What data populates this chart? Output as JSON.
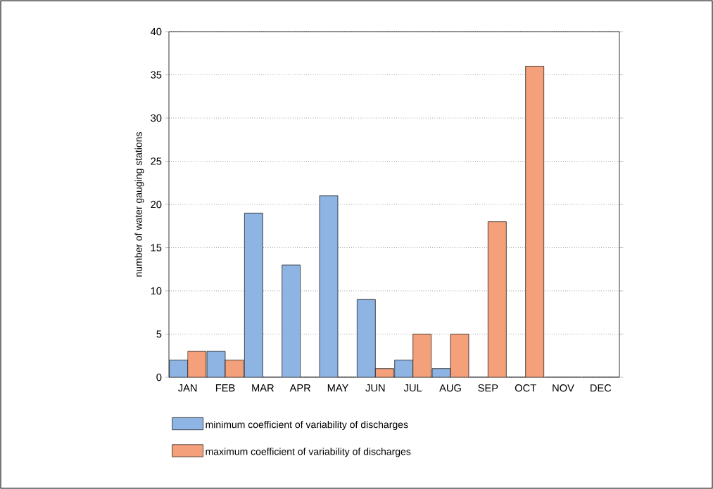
{
  "chart_data": {
    "type": "bar",
    "ylabel": "number of water gauging stations",
    "categories": [
      "JAN",
      "FEB",
      "MAR",
      "APR",
      "MAY",
      "JUN",
      "JUL",
      "AUG",
      "SEP",
      "OCT",
      "NOV",
      "DEC"
    ],
    "series": [
      {
        "name": "minimum coefficient of variability of discharges",
        "color": "#8db4e2",
        "values": [
          2,
          3,
          19,
          13,
          21,
          9,
          2,
          1,
          0,
          0,
          0,
          0
        ]
      },
      {
        "name": "maximum coefficient of variability of discharges",
        "color": "#f4a07a",
        "values": [
          3,
          2,
          0,
          0,
          0,
          1,
          5,
          5,
          18,
          36,
          0,
          0
        ]
      }
    ],
    "ylim": [
      0,
      40
    ],
    "yticks": [
      0,
      5,
      10,
      15,
      20,
      25,
      30,
      35,
      40
    ],
    "grid": "y",
    "legend": "bottom"
  }
}
